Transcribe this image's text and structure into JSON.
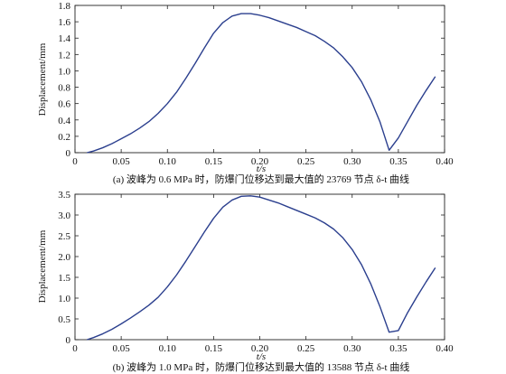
{
  "chart_data": [
    {
      "type": "line",
      "xlabel": "t/s",
      "ylabel": "Displacement/mm",
      "caption": "(a) 波峰为 0.6 MPa 时，防爆门位移达到最大值的 23769 节点 δ-t 曲线",
      "xlim": [
        0,
        0.4
      ],
      "ylim": [
        0,
        1.8
      ],
      "xticks": [
        "0",
        "0.05",
        "0.10",
        "0.15",
        "0.20",
        "0.25",
        "0.30",
        "0.35",
        "0.40"
      ],
      "yticks": [
        "0",
        "0.2",
        "0.4",
        "0.6",
        "0.8",
        "1.0",
        "1.2",
        "1.4",
        "1.6",
        "1.8"
      ],
      "series": [
        {
          "x": [
            0.013,
            0.02,
            0.03,
            0.04,
            0.05,
            0.06,
            0.07,
            0.08,
            0.09,
            0.1,
            0.11,
            0.12,
            0.13,
            0.14,
            0.15,
            0.16,
            0.17,
            0.18,
            0.19,
            0.2,
            0.21,
            0.22,
            0.23,
            0.24,
            0.25,
            0.26,
            0.27,
            0.28,
            0.29,
            0.3,
            0.31,
            0.32,
            0.33,
            0.34,
            0.35,
            0.36,
            0.37,
            0.38,
            0.39
          ],
          "y": [
            0.0,
            0.02,
            0.06,
            0.11,
            0.17,
            0.23,
            0.3,
            0.38,
            0.48,
            0.6,
            0.74,
            0.91,
            1.09,
            1.28,
            1.46,
            1.59,
            1.67,
            1.7,
            1.7,
            1.68,
            1.65,
            1.61,
            1.57,
            1.53,
            1.48,
            1.43,
            1.36,
            1.28,
            1.17,
            1.04,
            0.87,
            0.65,
            0.38,
            0.03,
            0.18,
            0.38,
            0.58,
            0.76,
            0.93
          ]
        }
      ]
    },
    {
      "type": "line",
      "xlabel": "t/s",
      "ylabel": "Displacement/mm",
      "caption": "(b) 波峰为 1.0 MPa 时，防爆门位移达到最大值的 13588 节点 δ-t 曲线",
      "xlim": [
        0,
        0.4
      ],
      "ylim": [
        0,
        3.5
      ],
      "xticks": [
        "0",
        "0.05",
        "0.10",
        "0.15",
        "0.20",
        "0.25",
        "0.30",
        "0.35",
        "0.40"
      ],
      "yticks": [
        "0",
        "0.5",
        "1.0",
        "1.5",
        "2.0",
        "2.5",
        "3.0",
        "3.5"
      ],
      "series": [
        {
          "x": [
            0.013,
            0.02,
            0.03,
            0.04,
            0.05,
            0.06,
            0.07,
            0.08,
            0.09,
            0.1,
            0.11,
            0.12,
            0.13,
            0.14,
            0.15,
            0.16,
            0.17,
            0.18,
            0.19,
            0.2,
            0.21,
            0.22,
            0.23,
            0.24,
            0.25,
            0.26,
            0.27,
            0.28,
            0.29,
            0.3,
            0.31,
            0.32,
            0.33,
            0.34,
            0.35,
            0.36,
            0.37,
            0.38,
            0.39
          ],
          "y": [
            0.0,
            0.05,
            0.14,
            0.25,
            0.38,
            0.52,
            0.67,
            0.83,
            1.02,
            1.27,
            1.56,
            1.89,
            2.24,
            2.59,
            2.92,
            3.19,
            3.36,
            3.45,
            3.46,
            3.43,
            3.36,
            3.29,
            3.2,
            3.11,
            3.02,
            2.93,
            2.81,
            2.66,
            2.45,
            2.17,
            1.81,
            1.35,
            0.8,
            0.18,
            0.22,
            0.65,
            1.03,
            1.39,
            1.73
          ]
        }
      ]
    }
  ]
}
